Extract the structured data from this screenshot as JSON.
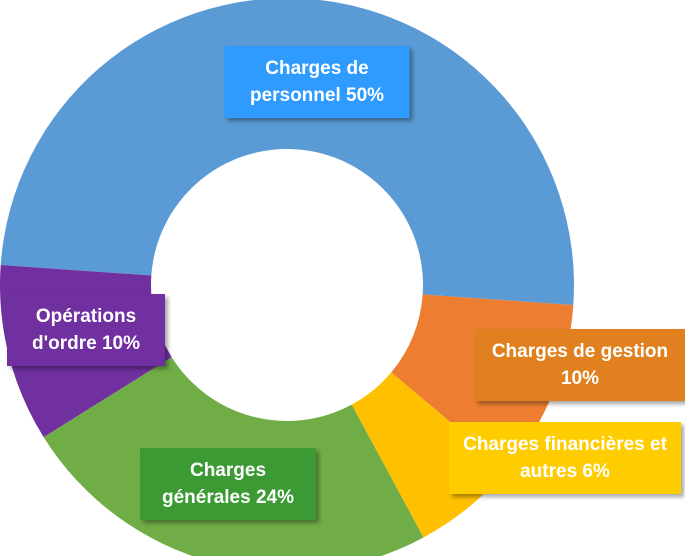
{
  "chart_data": {
    "type": "donut",
    "categories": [
      "Charges de personnel",
      "Charges de gestion",
      "Charges financières et autres",
      "Charges générales",
      "Opérations d'ordre"
    ],
    "values": [
      50,
      10,
      6,
      24,
      10
    ],
    "value_labels": [
      "50%",
      "10%",
      "6%",
      "24%",
      "10%"
    ],
    "colors": [
      "#5b9bd5",
      "#ed7d31",
      "#ffc000",
      "#70ad47",
      "#7030a0"
    ],
    "label_colors": [
      "#2f9bff",
      "#e0801f",
      "#ffcc00",
      "#3b9a33",
      "#7030a0"
    ]
  }
}
